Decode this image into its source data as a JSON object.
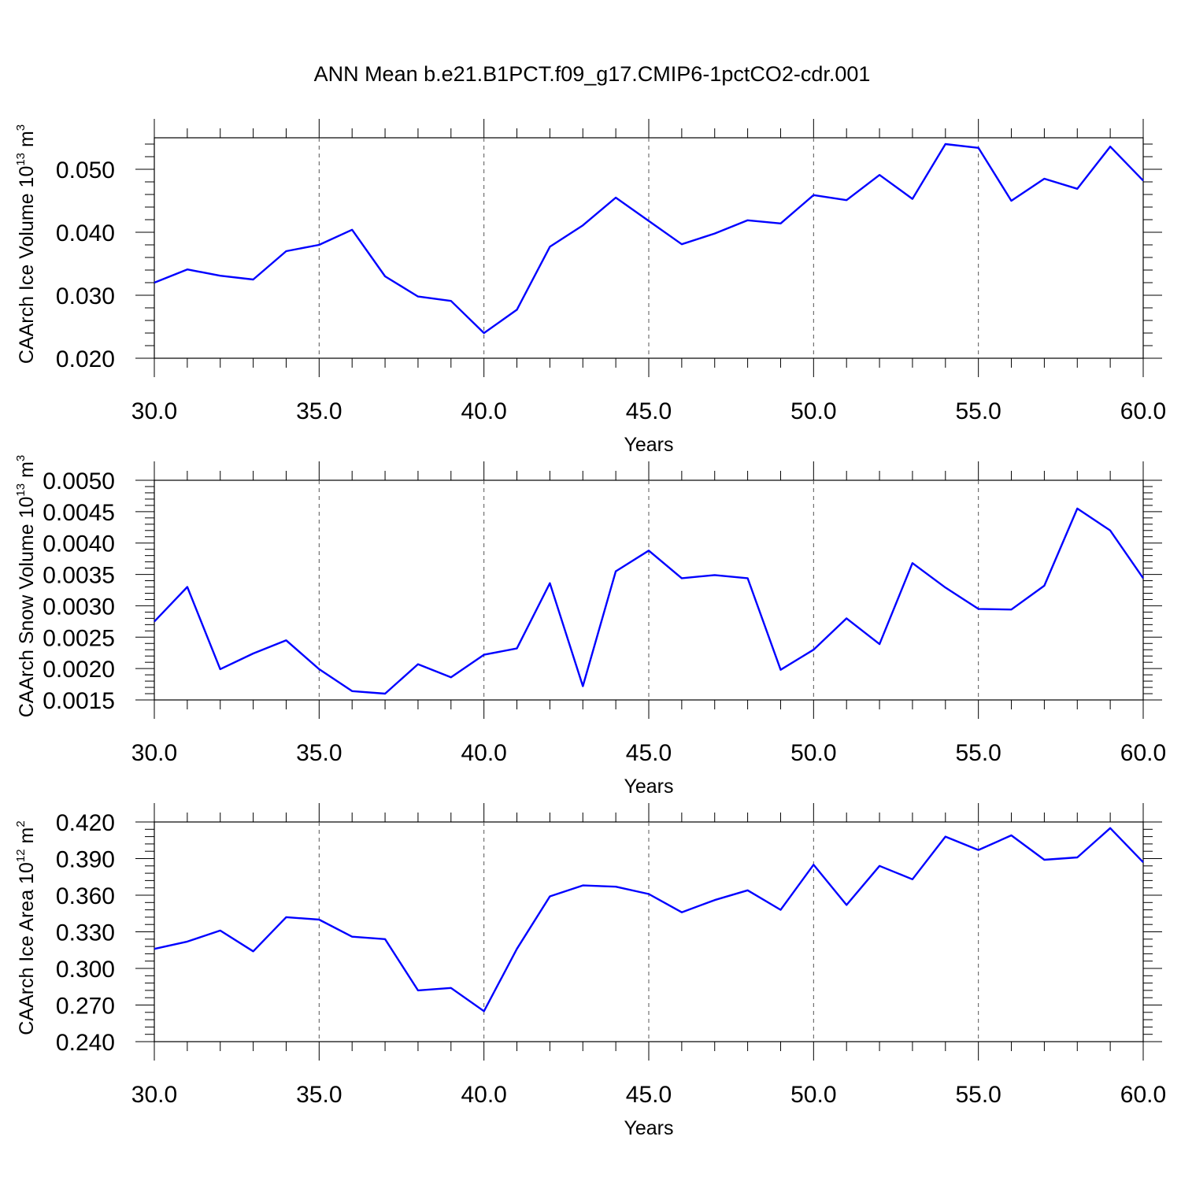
{
  "title": "ANN Mean b.e21.B1PCT.f09_g17.CMIP6-1pctCO2-cdr.001",
  "chart_data": [
    {
      "type": "line",
      "title": "ANN Mean b.e21.B1PCT.f09_g17.CMIP6-1pctCO2-cdr.001",
      "xlabel": "Years",
      "ylabel": {
        "text": "CAArch Ice Volume 10",
        "exp": "13",
        "unit": " m",
        "unit_exp": "3"
      },
      "xlim": [
        30,
        60
      ],
      "ylim": [
        0.02,
        0.055
      ],
      "xticks": [
        "30.0",
        "35.0",
        "40.0",
        "45.0",
        "50.0",
        "55.0",
        "60.0"
      ],
      "yticks": [
        {
          "v": 0.02,
          "label": "0.020"
        },
        {
          "v": 0.03,
          "label": "0.030"
        },
        {
          "v": 0.04,
          "label": "0.040"
        },
        {
          "v": 0.05,
          "label": "0.050"
        }
      ],
      "grid": "vertical dashed",
      "line_color": "#0000ff",
      "x": [
        30,
        31,
        32,
        33,
        34,
        35,
        36,
        37,
        38,
        39,
        40,
        41,
        42,
        43,
        44,
        45,
        46,
        47,
        48,
        49,
        50,
        51,
        52,
        53,
        54,
        55,
        56,
        57,
        58,
        59,
        60
      ],
      "values": [
        0.032,
        0.0341,
        0.0331,
        0.0325,
        0.037,
        0.038,
        0.0404,
        0.033,
        0.0298,
        0.0291,
        0.024,
        0.0277,
        0.0377,
        0.0411,
        0.0455,
        0.0418,
        0.0381,
        0.0398,
        0.0419,
        0.0414,
        0.0459,
        0.0451,
        0.0491,
        0.0453,
        0.054,
        0.0534,
        0.045,
        0.0485,
        0.0469,
        0.0536,
        0.0482
      ]
    },
    {
      "type": "line",
      "xlabel": "Years",
      "ylabel": {
        "text": "CAArch Snow Volume 10",
        "exp": "13",
        "unit": " m",
        "unit_exp": "3"
      },
      "xlim": [
        30,
        60
      ],
      "ylim": [
        0.0015,
        0.005
      ],
      "xticks": [
        "30.0",
        "35.0",
        "40.0",
        "45.0",
        "50.0",
        "55.0",
        "60.0"
      ],
      "yticks": [
        {
          "v": 0.0015,
          "label": "0.0015"
        },
        {
          "v": 0.002,
          "label": "0.0020"
        },
        {
          "v": 0.0025,
          "label": "0.0025"
        },
        {
          "v": 0.003,
          "label": "0.0030"
        },
        {
          "v": 0.0035,
          "label": "0.0035"
        },
        {
          "v": 0.004,
          "label": "0.0040"
        },
        {
          "v": 0.0045,
          "label": "0.0045"
        },
        {
          "v": 0.005,
          "label": "0.0050"
        }
      ],
      "grid": "vertical dashed",
      "line_color": "#0000ff",
      "x": [
        30,
        31,
        32,
        33,
        34,
        35,
        36,
        37,
        38,
        39,
        40,
        41,
        42,
        43,
        44,
        45,
        46,
        47,
        48,
        49,
        50,
        51,
        52,
        53,
        54,
        55,
        56,
        57,
        58,
        59,
        60
      ],
      "values": [
        0.00275,
        0.0033,
        0.00199,
        0.00224,
        0.00245,
        0.00199,
        0.00164,
        0.0016,
        0.00207,
        0.00186,
        0.00222,
        0.00232,
        0.00336,
        0.00172,
        0.00355,
        0.00388,
        0.00344,
        0.00349,
        0.00344,
        0.00198,
        0.0023,
        0.0028,
        0.00239,
        0.00368,
        0.00329,
        0.00295,
        0.00294,
        0.00332,
        0.00455,
        0.0042,
        0.00344
      ]
    },
    {
      "type": "line",
      "xlabel": "Years",
      "ylabel": {
        "text": "CAArch Ice Area 10",
        "exp": "12",
        "unit": " m",
        "unit_exp": "2"
      },
      "xlim": [
        30,
        60
      ],
      "ylim": [
        0.24,
        0.42
      ],
      "xticks": [
        "30.0",
        "35.0",
        "40.0",
        "45.0",
        "50.0",
        "55.0",
        "60.0"
      ],
      "yticks": [
        {
          "v": 0.24,
          "label": "0.240"
        },
        {
          "v": 0.27,
          "label": "0.270"
        },
        {
          "v": 0.3,
          "label": "0.300"
        },
        {
          "v": 0.33,
          "label": "0.330"
        },
        {
          "v": 0.36,
          "label": "0.360"
        },
        {
          "v": 0.39,
          "label": "0.390"
        },
        {
          "v": 0.42,
          "label": "0.420"
        }
      ],
      "grid": "vertical dashed",
      "line_color": "#0000ff",
      "x": [
        30,
        31,
        32,
        33,
        34,
        35,
        36,
        37,
        38,
        39,
        40,
        41,
        42,
        43,
        44,
        45,
        46,
        47,
        48,
        49,
        50,
        51,
        52,
        53,
        54,
        55,
        56,
        57,
        58,
        59,
        60
      ],
      "values": [
        0.316,
        0.322,
        0.331,
        0.314,
        0.342,
        0.34,
        0.326,
        0.324,
        0.282,
        0.284,
        0.265,
        0.316,
        0.359,
        0.368,
        0.367,
        0.361,
        0.346,
        0.356,
        0.364,
        0.348,
        0.385,
        0.352,
        0.384,
        0.373,
        0.408,
        0.397,
        0.409,
        0.389,
        0.391,
        0.415,
        0.387
      ]
    }
  ]
}
